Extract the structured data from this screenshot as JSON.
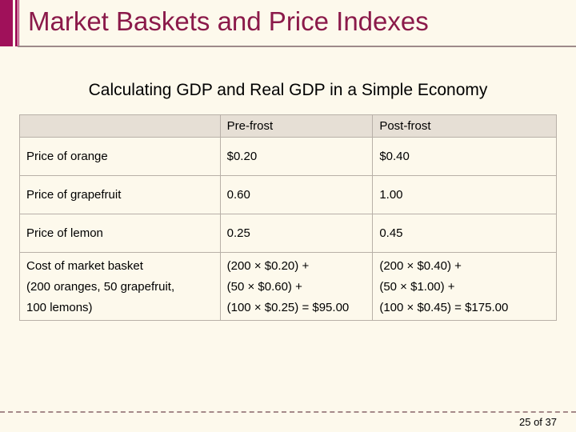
{
  "slide": {
    "title": "Market Baskets and Price Indexes",
    "subtitle": "Calculating GDP and Real GDP in a Simple Economy"
  },
  "table": {
    "headers": [
      "",
      "Pre-frost",
      "Post-frost"
    ],
    "rows": [
      {
        "label": "Price of orange",
        "pre": "$0.20",
        "post": "$0.40"
      },
      {
        "label": "Price of grapefruit",
        "pre": "0.60",
        "post": "1.00"
      },
      {
        "label": "Price of lemon",
        "pre": "0.25",
        "post": "0.45"
      }
    ],
    "basket_row": {
      "label_lines": [
        "Cost of market basket",
        "(200 oranges, 50 grapefruit,",
        "100 lemons)"
      ],
      "pre_lines": [
        "(200 × $0.20) +",
        "(50 × $0.60) +",
        "(100 × $0.25) = $95.00"
      ],
      "post_lines": [
        "(200 × $0.40) +",
        "(50 × $1.00) +",
        "(100 × $0.45) = $175.00"
      ]
    }
  },
  "footer": {
    "page_number": "25 of 37"
  },
  "colors": {
    "background": "#fdf9ec",
    "title": "#8b1a4a",
    "accent_bar": "#a0115a",
    "header_fill": "#e6dfd5"
  }
}
